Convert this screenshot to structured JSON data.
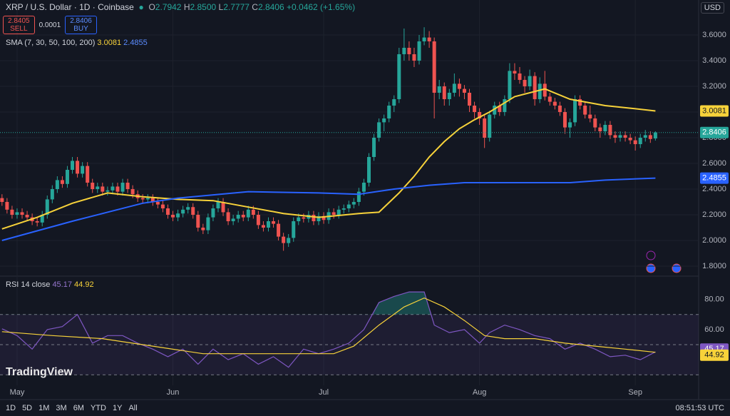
{
  "header": {
    "symbol": "XRP / U.S. Dollar · 1D · Coinbase",
    "open_label": "O",
    "open": "2.7942",
    "high_label": "H",
    "high": "2.8500",
    "low_label": "L",
    "low": "2.7777",
    "close_label": "C",
    "close": "2.8406",
    "change": "+0.0462 (+1.65%)",
    "currency": "USD"
  },
  "trade": {
    "sell_price": "2.8405",
    "sell": "SELL",
    "spread": "0.0001",
    "buy_price": "2.8406",
    "buy": "BUY"
  },
  "toolbar": {
    "ranges": [
      "1D",
      "5D",
      "1M",
      "3M",
      "6M",
      "YTD",
      "1Y",
      "All"
    ],
    "time": "08:51:53 UTC"
  },
  "logo": "TradingView",
  "chart_data": [
    {
      "type": "candlestick",
      "legend": "SMA (7, 30, 50, 100, 200)",
      "up_color": "#26a69a",
      "down_color": "#ef5350",
      "xlim": [
        -0.4,
        138.6
      ],
      "ylim": [
        1.728,
        3.872
      ],
      "xticks": [
        {
          "value": 3,
          "label": "May"
        },
        {
          "value": 34,
          "label": "Jun"
        },
        {
          "value": 64,
          "label": "Jul"
        },
        {
          "value": 95,
          "label": "Aug"
        },
        {
          "value": 126,
          "label": "Sep"
        }
      ],
      "yticks": [
        {
          "value": 1.8,
          "label": "1.8000"
        },
        {
          "value": 2.0,
          "label": "2.0000"
        },
        {
          "value": 2.2,
          "label": "2.2000"
        },
        {
          "value": 2.4,
          "label": "2.4000"
        },
        {
          "value": 2.6,
          "label": "2.6000"
        },
        {
          "value": 2.8,
          "label": "2.8000"
        },
        {
          "value": 3.0,
          "label": "3.0000"
        },
        {
          "value": 3.2,
          "label": "3.2000"
        },
        {
          "value": 3.4,
          "label": "3.4000"
        },
        {
          "value": 3.6,
          "label": "3.6000"
        }
      ],
      "grid": true,
      "candles": [
        [
          2.33,
          2.36,
          2.27,
          2.3
        ],
        [
          2.3,
          2.33,
          2.21,
          2.24
        ],
        [
          2.24,
          2.27,
          2.17,
          2.2
        ],
        [
          2.2,
          2.25,
          2.17,
          2.22
        ],
        [
          2.22,
          2.25,
          2.17,
          2.2
        ],
        [
          2.2,
          2.23,
          2.15,
          2.18
        ],
        [
          2.18,
          2.21,
          2.12,
          2.15
        ],
        [
          2.15,
          2.18,
          2.11,
          2.14
        ],
        [
          2.14,
          2.23,
          2.11,
          2.2
        ],
        [
          2.2,
          2.35,
          2.17,
          2.32
        ],
        [
          2.32,
          2.43,
          2.29,
          2.4
        ],
        [
          2.4,
          2.5,
          2.37,
          2.47
        ],
        [
          2.47,
          2.5,
          2.41,
          2.44
        ],
        [
          2.44,
          2.58,
          2.41,
          2.55
        ],
        [
          2.55,
          2.65,
          2.52,
          2.62
        ],
        [
          2.62,
          2.65,
          2.49,
          2.52
        ],
        [
          2.52,
          2.61,
          2.49,
          2.58
        ],
        [
          2.58,
          2.61,
          2.42,
          2.45
        ],
        [
          2.45,
          2.48,
          2.37,
          2.4
        ],
        [
          2.4,
          2.45,
          2.37,
          2.42
        ],
        [
          2.42,
          2.45,
          2.35,
          2.38
        ],
        [
          2.38,
          2.42,
          2.35,
          2.39
        ],
        [
          2.39,
          2.45,
          2.36,
          2.42
        ],
        [
          2.42,
          2.45,
          2.35,
          2.38
        ],
        [
          2.38,
          2.48,
          2.35,
          2.45
        ],
        [
          2.45,
          2.48,
          2.37,
          2.4
        ],
        [
          2.4,
          2.43,
          2.33,
          2.36
        ],
        [
          2.36,
          2.39,
          2.3,
          2.33
        ],
        [
          2.33,
          2.36,
          2.29,
          2.32
        ],
        [
          2.32,
          2.36,
          2.29,
          2.33
        ],
        [
          2.33,
          2.36,
          2.27,
          2.3
        ],
        [
          2.3,
          2.33,
          2.25,
          2.28
        ],
        [
          2.28,
          2.31,
          2.22,
          2.25
        ],
        [
          2.25,
          2.28,
          2.17,
          2.2
        ],
        [
          2.2,
          2.23,
          2.15,
          2.18
        ],
        [
          2.18,
          2.24,
          2.15,
          2.21
        ],
        [
          2.21,
          2.27,
          2.18,
          2.24
        ],
        [
          2.24,
          2.29,
          2.21,
          2.26
        ],
        [
          2.26,
          2.29,
          2.17,
          2.2
        ],
        [
          2.2,
          2.23,
          2.07,
          2.1
        ],
        [
          2.1,
          2.13,
          2.05,
          2.08
        ],
        [
          2.08,
          2.21,
          2.05,
          2.18
        ],
        [
          2.18,
          2.28,
          2.15,
          2.25
        ],
        [
          2.25,
          2.33,
          2.22,
          2.3
        ],
        [
          2.3,
          2.33,
          2.19,
          2.22
        ],
        [
          2.22,
          2.25,
          2.12,
          2.15
        ],
        [
          2.15,
          2.2,
          2.12,
          2.17
        ],
        [
          2.17,
          2.23,
          2.14,
          2.2
        ],
        [
          2.2,
          2.23,
          2.15,
          2.18
        ],
        [
          2.18,
          2.27,
          2.15,
          2.24
        ],
        [
          2.24,
          2.27,
          2.17,
          2.2
        ],
        [
          2.2,
          2.23,
          2.09,
          2.12
        ],
        [
          2.12,
          2.15,
          2.07,
          2.1
        ],
        [
          2.1,
          2.18,
          2.07,
          2.15
        ],
        [
          2.15,
          2.18,
          2.1,
          2.13
        ],
        [
          2.13,
          2.16,
          2.0,
          2.03
        ],
        [
          2.03,
          2.06,
          1.92,
          1.98
        ],
        [
          1.98,
          2.05,
          1.95,
          2.02
        ],
        [
          2.02,
          2.18,
          1.99,
          2.15
        ],
        [
          2.15,
          2.21,
          2.12,
          2.18
        ],
        [
          2.18,
          2.21,
          2.14,
          2.17
        ],
        [
          2.17,
          2.23,
          2.14,
          2.2
        ],
        [
          2.2,
          2.23,
          2.12,
          2.15
        ],
        [
          2.15,
          2.22,
          2.12,
          2.19
        ],
        [
          2.19,
          2.22,
          2.13,
          2.16
        ],
        [
          2.16,
          2.25,
          2.13,
          2.22
        ],
        [
          2.22,
          2.25,
          2.17,
          2.2
        ],
        [
          2.2,
          2.27,
          2.17,
          2.24
        ],
        [
          2.24,
          2.28,
          2.21,
          2.25
        ],
        [
          2.25,
          2.31,
          2.22,
          2.28
        ],
        [
          2.28,
          2.33,
          2.25,
          2.3
        ],
        [
          2.3,
          2.41,
          2.27,
          2.38
        ],
        [
          2.38,
          2.48,
          2.35,
          2.45
        ],
        [
          2.45,
          2.68,
          2.42,
          2.65
        ],
        [
          2.65,
          2.83,
          2.62,
          2.8
        ],
        [
          2.8,
          2.95,
          2.77,
          2.92
        ],
        [
          2.92,
          2.98,
          2.85,
          2.95
        ],
        [
          2.95,
          3.08,
          2.92,
          3.05
        ],
        [
          3.05,
          3.13,
          3.0,
          3.1
        ],
        [
          3.1,
          3.5,
          3.07,
          3.45
        ],
        [
          3.45,
          3.65,
          3.4,
          3.5
        ],
        [
          3.5,
          3.55,
          3.4,
          3.45
        ],
        [
          3.45,
          3.5,
          3.35,
          3.4
        ],
        [
          3.4,
          3.6,
          3.37,
          3.55
        ],
        [
          3.55,
          3.66,
          3.52,
          3.58
        ],
        [
          3.58,
          3.63,
          3.5,
          3.55
        ],
        [
          3.55,
          3.58,
          2.95,
          3.15
        ],
        [
          3.15,
          3.25,
          3.1,
          3.2
        ],
        [
          3.2,
          3.23,
          3.05,
          3.1
        ],
        [
          3.1,
          3.18,
          3.05,
          3.15
        ],
        [
          3.15,
          3.3,
          3.12,
          3.22
        ],
        [
          3.22,
          3.26,
          3.12,
          3.18
        ],
        [
          3.18,
          3.21,
          3.1,
          3.15
        ],
        [
          3.15,
          3.18,
          3.0,
          3.05
        ],
        [
          3.05,
          3.08,
          2.95,
          3.0
        ],
        [
          3.0,
          3.03,
          2.9,
          2.95
        ],
        [
          2.95,
          2.98,
          2.72,
          2.8
        ],
        [
          2.8,
          3.01,
          2.77,
          2.98
        ],
        [
          2.98,
          3.08,
          2.95,
          3.05
        ],
        [
          3.05,
          3.08,
          2.97,
          3.0
        ],
        [
          3.0,
          3.13,
          2.97,
          3.1
        ],
        [
          3.1,
          3.38,
          3.07,
          3.32
        ],
        [
          3.32,
          3.38,
          3.25,
          3.3
        ],
        [
          3.3,
          3.35,
          3.22,
          3.25
        ],
        [
          3.25,
          3.28,
          3.15,
          3.2
        ],
        [
          3.2,
          3.33,
          3.17,
          3.28
        ],
        [
          3.28,
          3.31,
          3.05,
          3.1
        ],
        [
          3.1,
          3.27,
          3.07,
          3.22
        ],
        [
          3.22,
          3.32,
          3.09,
          3.12
        ],
        [
          3.12,
          3.15,
          3.05,
          3.08
        ],
        [
          3.08,
          3.11,
          3.02,
          3.05
        ],
        [
          3.05,
          3.08,
          2.97,
          3.0
        ],
        [
          3.0,
          3.03,
          2.83,
          2.88
        ],
        [
          2.88,
          2.95,
          2.8,
          2.92
        ],
        [
          2.92,
          3.13,
          2.89,
          3.1
        ],
        [
          3.1,
          3.13,
          3.02,
          3.05
        ],
        [
          3.05,
          3.08,
          2.95,
          2.98
        ],
        [
          2.98,
          3.05,
          2.92,
          2.95
        ],
        [
          2.95,
          2.98,
          2.85,
          2.88
        ],
        [
          2.88,
          2.91,
          2.8,
          2.85
        ],
        [
          2.85,
          2.93,
          2.82,
          2.9
        ],
        [
          2.9,
          2.93,
          2.79,
          2.82
        ],
        [
          2.82,
          2.85,
          2.76,
          2.8
        ],
        [
          2.8,
          2.85,
          2.77,
          2.82
        ],
        [
          2.82,
          2.85,
          2.77,
          2.8
        ],
        [
          2.8,
          2.83,
          2.75,
          2.78
        ],
        [
          2.78,
          2.81,
          2.7,
          2.75
        ],
        [
          2.75,
          2.83,
          2.72,
          2.8
        ],
        [
          2.8,
          2.86,
          2.77,
          2.82
        ],
        [
          2.82,
          2.85,
          2.76,
          2.79
        ],
        [
          2.7942,
          2.85,
          2.7777,
          2.8406
        ]
      ],
      "series": [
        {
          "color": "#f7d23a",
          "x": [
            0,
            7,
            14,
            21,
            28,
            35,
            42,
            49,
            56,
            63,
            71,
            75,
            79,
            82,
            85,
            88,
            91,
            94,
            97,
            102,
            108,
            113,
            120,
            125,
            130
          ],
          "values": [
            2.09,
            2.18,
            2.29,
            2.37,
            2.34,
            2.32,
            2.31,
            2.26,
            2.21,
            2.18,
            2.21,
            2.22,
            2.37,
            2.5,
            2.65,
            2.77,
            2.87,
            2.94,
            3.0,
            3.12,
            3.18,
            3.1,
            3.05,
            3.03,
            3.0081
          ]
        },
        {
          "color": "#2962ff",
          "x": [
            0,
            14,
            28,
            35,
            49,
            63,
            71,
            78,
            85,
            92,
            106,
            113,
            120,
            130
          ],
          "values": [
            2.0,
            2.15,
            2.29,
            2.33,
            2.38,
            2.37,
            2.36,
            2.4,
            2.43,
            2.45,
            2.45,
            2.45,
            2.47,
            2.4855
          ]
        }
      ]
    },
    {
      "type": "line",
      "legend": "RSI 14 close",
      "xlim": [
        -0.4,
        138.6
      ],
      "ylim": [
        23,
        95
      ],
      "yticks": [
        {
          "value": 60,
          "label": "60.00"
        },
        {
          "value": 80,
          "label": "80.00"
        }
      ],
      "levels": [
        70,
        50,
        30
      ],
      "band_color": "#7e57c2",
      "overbought_color": "#26a69a",
      "series": [
        {
          "color": "#7e57c2",
          "x": [
            0,
            3,
            6,
            9,
            12,
            15,
            18,
            21,
            24,
            27,
            30,
            33,
            36,
            39,
            42,
            45,
            48,
            51,
            54,
            57,
            60,
            63,
            66,
            69,
            72,
            75,
            78,
            81,
            84,
            86,
            89,
            92,
            95,
            97,
            100,
            103,
            106,
            109,
            112,
            115,
            118,
            121,
            124,
            127,
            130
          ],
          "values": [
            60.5,
            56,
            47,
            60,
            62,
            70,
            51,
            56,
            56,
            51,
            47,
            42,
            47,
            37,
            47,
            40,
            44,
            37,
            42,
            35,
            47,
            44,
            47,
            51,
            60,
            78,
            82,
            85,
            85,
            63,
            58,
            60,
            51,
            58,
            63,
            60,
            56,
            54,
            47,
            51,
            47,
            42,
            43,
            40,
            45.17
          ]
        },
        {
          "color": "#f7d23a",
          "x": [
            0,
            10,
            20,
            30,
            40,
            50,
            60,
            66,
            70,
            75,
            80,
            84,
            88,
            92,
            96,
            100,
            106,
            112,
            118,
            124,
            130
          ],
          "values": [
            58.6,
            56,
            54,
            49,
            44,
            44,
            44,
            44,
            49,
            63,
            75,
            81,
            75,
            66,
            56,
            54,
            54,
            51,
            49,
            47,
            44.92
          ]
        }
      ]
    }
  ]
}
